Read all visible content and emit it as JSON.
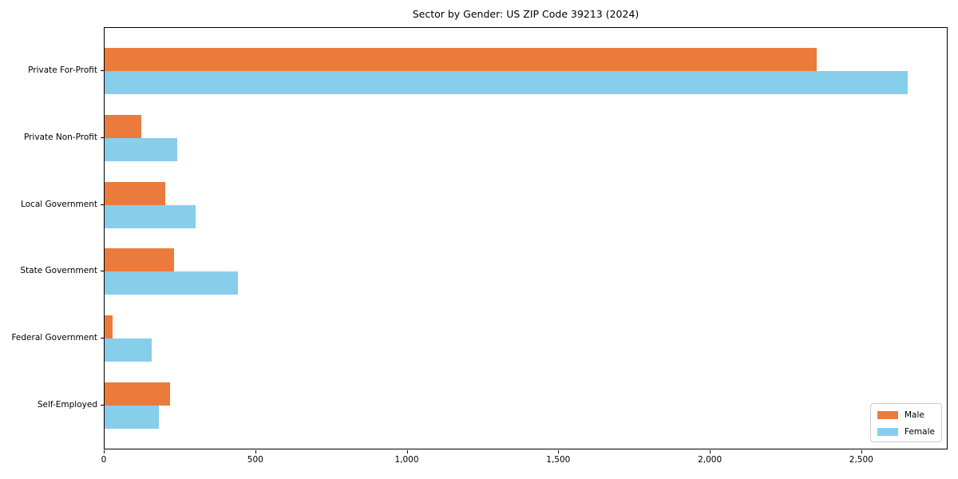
{
  "title": "Sector by Gender: US ZIP Code 39213 (2024)",
  "colors": {
    "male": "#eb7b3c",
    "female": "#87ceeb",
    "spine": "#000000",
    "legend_border": "#cccccc",
    "background": "#ffffff",
    "text": "#000000"
  },
  "legend": {
    "position": "lower right",
    "entries": [
      {
        "label": "Male",
        "color": "#eb7b3c"
      },
      {
        "label": "Female",
        "color": "#87ceeb"
      }
    ]
  },
  "chart_data": {
    "type": "bar",
    "orientation": "horizontal",
    "title": "Sector by Gender: US ZIP Code 39213 (2024)",
    "categories": [
      "Private For-Profit",
      "Private Non-Profit",
      "Local Government",
      "State Government",
      "Federal Government",
      "Self-Employed"
    ],
    "series": [
      {
        "name": "Male",
        "color": "#eb7b3c",
        "values": [
          2350,
          120,
          200,
          230,
          25,
          215
        ]
      },
      {
        "name": "Female",
        "color": "#87ceeb",
        "values": [
          2650,
          240,
          300,
          440,
          155,
          180
        ]
      }
    ],
    "xlabel": "",
    "ylabel": "",
    "xlim": [
      0,
      2785
    ],
    "xticks": [
      0,
      500,
      1000,
      1500,
      2000,
      2500
    ],
    "xtick_labels": [
      "0",
      "500",
      "1,000",
      "1,500",
      "2,000",
      "2,500"
    ],
    "grid": false,
    "legend_position": "lower right"
  }
}
